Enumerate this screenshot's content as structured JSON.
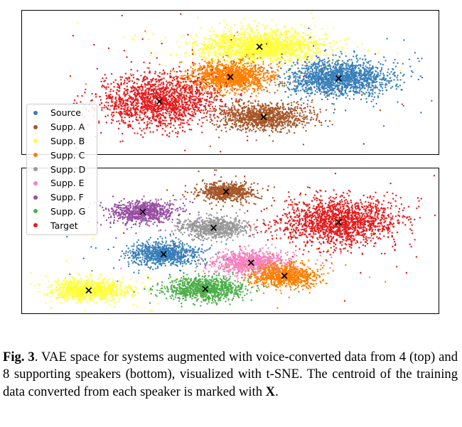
{
  "chart_data": [
    {
      "type": "scatter",
      "panel": "top",
      "grid": false,
      "legend_placement": "left",
      "clusters": [
        {
          "name": "Supp. B",
          "color": "#ffff33",
          "centroid": [
            0.57,
            0.25
          ],
          "spread": [
            0.15,
            0.11
          ],
          "n": 1700
        },
        {
          "name": "Supp. C",
          "color": "#ff7f00",
          "centroid": [
            0.5,
            0.46
          ],
          "spread": [
            0.1,
            0.1
          ],
          "n": 1300
        },
        {
          "name": "Source",
          "color": "#377eb8",
          "centroid": [
            0.76,
            0.47
          ],
          "spread": [
            0.12,
            0.12
          ],
          "n": 1600
        },
        {
          "name": "Target",
          "color": "#e41a1c",
          "centroid": [
            0.33,
            0.63
          ],
          "spread": [
            0.14,
            0.18
          ],
          "n": 1700
        },
        {
          "name": "Supp. A",
          "color": "#a65628",
          "centroid": [
            0.58,
            0.74
          ],
          "spread": [
            0.1,
            0.09
          ],
          "n": 1100
        }
      ]
    },
    {
      "type": "scatter",
      "panel": "bottom",
      "grid": false,
      "clusters": [
        {
          "name": "Supp. A",
          "color": "#a65628",
          "centroid": [
            0.49,
            0.16
          ],
          "spread": [
            0.07,
            0.06
          ],
          "n": 700
        },
        {
          "name": "Supp. F",
          "color": "#984ea3",
          "centroid": [
            0.29,
            0.3
          ],
          "spread": [
            0.075,
            0.075
          ],
          "n": 800
        },
        {
          "name": "Supp. D",
          "color": "#999999",
          "centroid": [
            0.46,
            0.41
          ],
          "spread": [
            0.08,
            0.07
          ],
          "n": 800
        },
        {
          "name": "Target",
          "color": "#e41a1c",
          "centroid": [
            0.76,
            0.37
          ],
          "spread": [
            0.14,
            0.16
          ],
          "n": 1700
        },
        {
          "name": "Source",
          "color": "#377eb8",
          "centroid": [
            0.34,
            0.59
          ],
          "spread": [
            0.08,
            0.08
          ],
          "n": 900
        },
        {
          "name": "Supp. E",
          "color": "#f781bf",
          "centroid": [
            0.55,
            0.65
          ],
          "spread": [
            0.09,
            0.08
          ],
          "n": 900
        },
        {
          "name": "Supp. C",
          "color": "#ff7f00",
          "centroid": [
            0.63,
            0.74
          ],
          "spread": [
            0.08,
            0.08
          ],
          "n": 800
        },
        {
          "name": "Supp. B",
          "color": "#ffff33",
          "centroid": [
            0.16,
            0.84
          ],
          "spread": [
            0.09,
            0.07
          ],
          "n": 900
        },
        {
          "name": "Supp. G",
          "color": "#4daf4a",
          "centroid": [
            0.44,
            0.83
          ],
          "spread": [
            0.09,
            0.08
          ],
          "n": 1000
        }
      ]
    }
  ],
  "legend": {
    "items": [
      {
        "label": "Source",
        "color": "#377eb8"
      },
      {
        "label": "Supp. A",
        "color": "#a65628"
      },
      {
        "label": "Supp. B",
        "color": "#ffff33"
      },
      {
        "label": "Supp. C",
        "color": "#ff7f00"
      },
      {
        "label": "Supp. D",
        "color": "#999999"
      },
      {
        "label": "Supp. E",
        "color": "#f781bf"
      },
      {
        "label": "Supp. F",
        "color": "#984ea3"
      },
      {
        "label": "Supp. G",
        "color": "#4daf4a"
      },
      {
        "label": "Target",
        "color": "#e41a1c"
      }
    ]
  },
  "centroid_marker": "×",
  "caption": {
    "fig_label": "Fig. 3",
    "text_before_marker": ". VAE space for systems augmented with voice-converted data from 4 (top) and 8 supporting speakers (bottom), visualized with t-SNE. The centroid of the training data converted from each speaker is marked with ",
    "marker": "X",
    "text_after_marker": "."
  }
}
